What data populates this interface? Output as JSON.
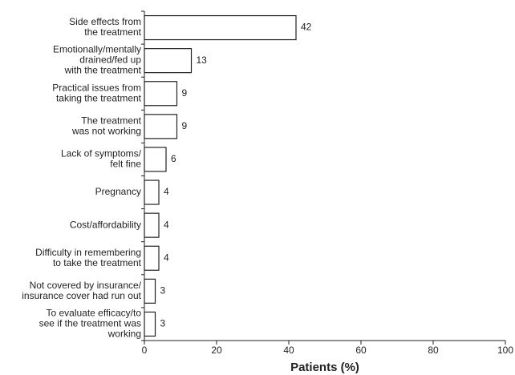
{
  "chart_data": {
    "type": "hbar",
    "x_label": "Patients (%)",
    "categories": [
      "Side effects from\nthe treatment",
      "Emotionally/mentally\ndrained/fed up\nwith the treatment",
      "Practical issues from\ntaking the treatment",
      "The treatment\nwas not working",
      "Lack of symptoms/\nfelt fine",
      "Pregnancy",
      "Cost/affordability",
      "Difficulty in remembering\nto take the treatment",
      "Not covered by insurance/\ninsurance cover had run out",
      "To evaluate efficacy/to\nsee if the treatment was\nworking"
    ],
    "values": [
      42,
      13,
      9,
      9,
      6,
      4,
      4,
      4,
      3,
      3
    ],
    "color": "#ffffff",
    "xlim": [
      0,
      100
    ],
    "xticks": [
      0,
      20,
      40,
      60,
      80,
      100
    ]
  }
}
